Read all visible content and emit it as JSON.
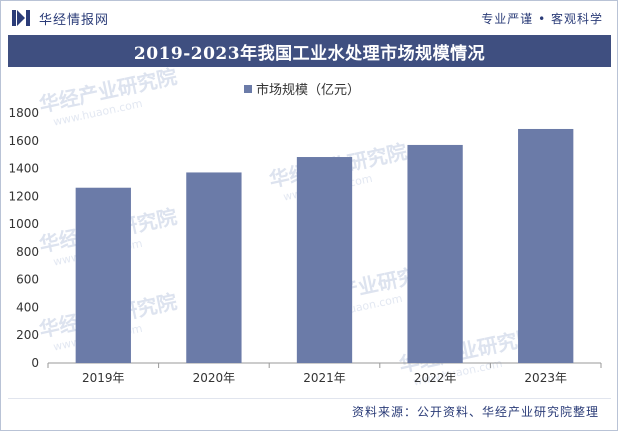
{
  "header": {
    "brand": "华经情报网",
    "tagline": "专业严谨 • 客观科学"
  },
  "watermark": {
    "text_cn": "华经产业研究院",
    "text_url": "www.huaon.com"
  },
  "colors": {
    "title_bg": "#3f4f80",
    "bar": "#6b7ba8",
    "brand_text": "#2b3c78"
  },
  "chart_data": {
    "type": "bar",
    "title": "2019-2023年我国工业水处理市场规模情况",
    "categories": [
      "2019年",
      "2020年",
      "2021年",
      "2022年",
      "2023年"
    ],
    "series": [
      {
        "name": "市场规模（亿元）",
        "values": [
          1262,
          1372,
          1483,
          1570,
          1685
        ]
      }
    ],
    "ylim": [
      0,
      1800
    ],
    "yticks": [
      "0",
      "200",
      "400",
      "600",
      "800",
      "1000",
      "1200",
      "1400",
      "1600",
      "1800"
    ],
    "legend_position": "top-center",
    "grid": false
  },
  "footer": {
    "source": "资料来源：公开资料、华经产业研究院整理"
  }
}
